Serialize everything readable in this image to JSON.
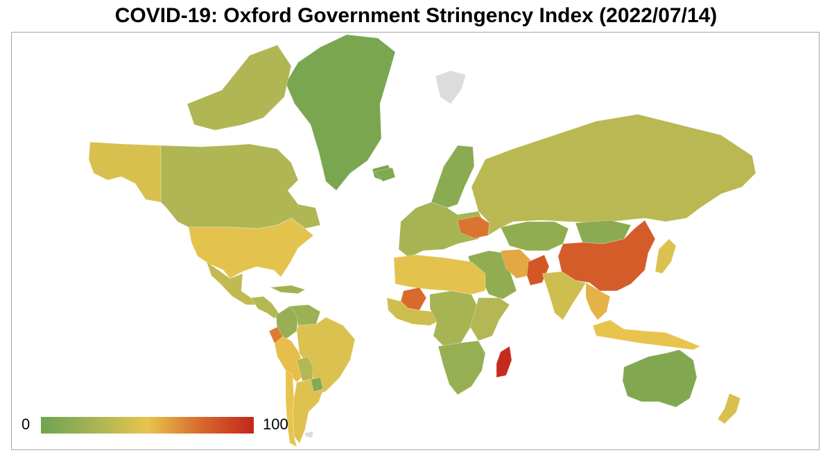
{
  "title": "COVID-19: Oxford Government Stringency Index (2022/07/14)",
  "legend": {
    "min_label": "0",
    "max_label": "100",
    "stops": [
      {
        "value": 0,
        "color": "#6fa34f"
      },
      {
        "value": 25,
        "color": "#a7b454"
      },
      {
        "value": 50,
        "color": "#e8c44e"
      },
      {
        "value": 75,
        "color": "#d86a2c"
      },
      {
        "value": 100,
        "color": "#c3261b"
      }
    ]
  },
  "colors": {
    "no_data": "#dcdcdc",
    "ocean": "#ffffff",
    "border": "#a6a6a6"
  },
  "regions": [
    {
      "name": "greenland",
      "index": 5
    },
    {
      "name": "canada",
      "index": 28
    },
    {
      "name": "alaska",
      "index": 44
    },
    {
      "name": "usa",
      "index": 48
    },
    {
      "name": "mexico",
      "index": 35
    },
    {
      "name": "central-america",
      "index": 30
    },
    {
      "name": "caribbean",
      "index": 22
    },
    {
      "name": "colombia",
      "index": 18
    },
    {
      "name": "venezuela",
      "index": 20
    },
    {
      "name": "ecuador",
      "index": 70
    },
    {
      "name": "peru",
      "index": 52
    },
    {
      "name": "brazil",
      "index": 45
    },
    {
      "name": "bolivia",
      "index": 30
    },
    {
      "name": "paraguay",
      "index": 10
    },
    {
      "name": "argentina",
      "index": 46
    },
    {
      "name": "chile",
      "index": 50
    },
    {
      "name": "iceland",
      "index": 8
    },
    {
      "name": "scandinavia",
      "index": 12
    },
    {
      "name": "europe",
      "index": 25
    },
    {
      "name": "ukraine",
      "index": 72
    },
    {
      "name": "russia",
      "index": 32
    },
    {
      "name": "kazakhstan",
      "index": 15
    },
    {
      "name": "mongolia",
      "index": 12
    },
    {
      "name": "china",
      "index": 80
    },
    {
      "name": "middle-east",
      "index": 15
    },
    {
      "name": "iran",
      "index": 58
    },
    {
      "name": "pakistan",
      "index": 82
    },
    {
      "name": "india",
      "index": 40
    },
    {
      "name": "southeast-asia",
      "index": 55
    },
    {
      "name": "indonesia",
      "index": 50
    },
    {
      "name": "japan",
      "index": 45
    },
    {
      "name": "north-africa",
      "index": 48
    },
    {
      "name": "mali",
      "index": 75
    },
    {
      "name": "west-africa",
      "index": 40
    },
    {
      "name": "central-africa",
      "index": 25
    },
    {
      "name": "east-africa",
      "index": 30
    },
    {
      "name": "southern-africa",
      "index": 18
    },
    {
      "name": "madagascar",
      "index": 98
    },
    {
      "name": "australia",
      "index": 8
    },
    {
      "name": "new-zealand",
      "index": 44
    },
    {
      "name": "svalbard",
      "index": null
    },
    {
      "name": "antarctic-islands",
      "index": null
    }
  ]
}
